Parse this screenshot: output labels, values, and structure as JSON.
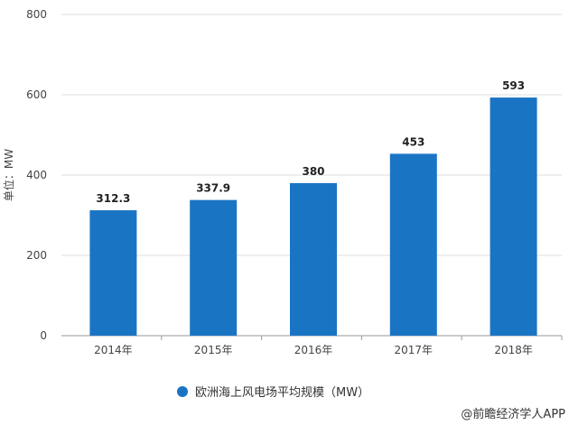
{
  "chart_data": {
    "type": "bar",
    "categories": [
      "2014年",
      "2015年",
      "2016年",
      "2017年",
      "2018年"
    ],
    "series": [
      {
        "name": "欧洲海上风电场平均规模（MW）",
        "values": [
          312.3,
          337.9,
          380,
          453,
          593
        ],
        "labels": [
          "312.3",
          "337.9",
          "380",
          "453",
          "593"
        ]
      }
    ],
    "ylabel": "单位：MW",
    "ylim": [
      0,
      800
    ],
    "yticks": [
      0,
      200,
      400,
      600,
      800
    ],
    "grid": true,
    "legend": "bottom-center",
    "colors": {
      "bar": "#1a74c4",
      "grid": "#dddddd"
    }
  },
  "credit": "@前瞻经济学人APP"
}
